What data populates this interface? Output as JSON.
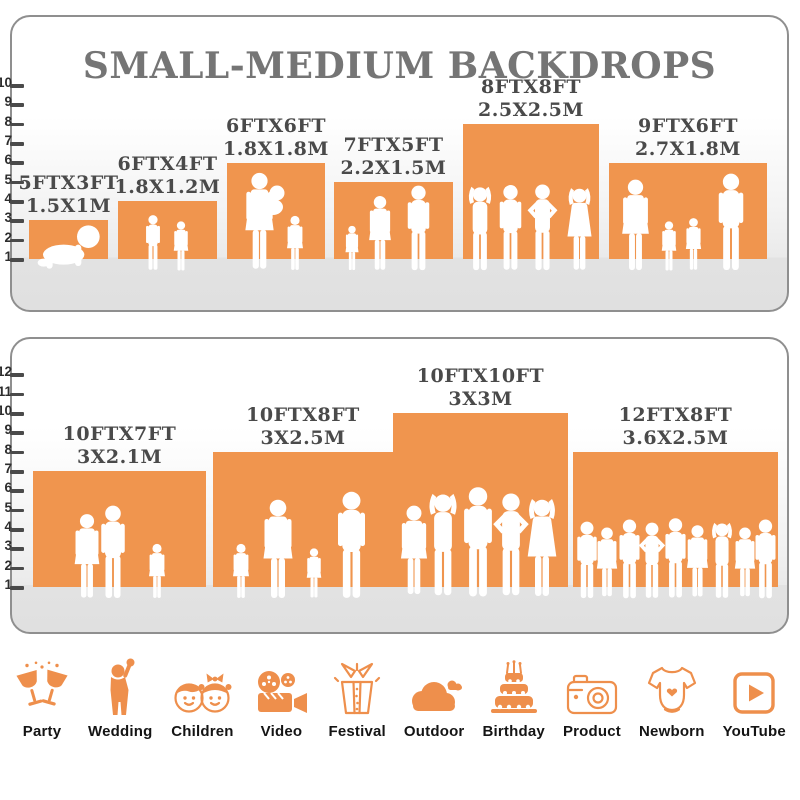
{
  "title": "SMALL-MEDIUM BACKDROPS",
  "colors": {
    "accent_orange": "#F0954E",
    "icon_orange": "#EE8F4C",
    "panel_border": "#8F8F8F",
    "floor_gray": "#E2E2E2",
    "title_text": "#757575",
    "bar_label_text": "#4A4A4A",
    "axis_text": "#2D2D2D",
    "silhouette": "#FFFFFF"
  },
  "chart_data": [
    {
      "type": "bar",
      "panel": "top",
      "title": "SMALL-MEDIUM BACKDROPS",
      "ylim": [
        0,
        10
      ],
      "yticks": [
        1,
        2,
        3,
        4,
        5,
        6,
        7,
        8,
        9,
        10
      ],
      "categories": [
        "5FTX3FT",
        "6FTX4FT",
        "6FTX6FT",
        "7FTX5FT",
        "8FTX8FT",
        "9FTX6FT"
      ],
      "values": [
        3,
        4,
        6,
        5,
        8,
        6
      ],
      "bars": [
        {
          "ft": "5FTX3FT",
          "m": "1.5X1M",
          "height_ft": 3,
          "width_ft": 5,
          "people": "crawling baby"
        },
        {
          "ft": "6FTX4FT",
          "m": "1.8X1.2M",
          "height_ft": 4,
          "width_ft": 6,
          "people": "boy and girl"
        },
        {
          "ft": "6FTX6FT",
          "m": "1.8X1.8M",
          "height_ft": 6,
          "width_ft": 6,
          "people": "mother holding baby with girl"
        },
        {
          "ft": "7FTX5FT",
          "m": "2.2X1.5M",
          "height_ft": 5,
          "width_ft": 7,
          "people": "toddler, woman and man"
        },
        {
          "ft": "8FTX8FT",
          "m": "2.5X2.5M",
          "height_ft": 8,
          "width_ft": 8,
          "people": "four posing adults"
        },
        {
          "ft": "9FTX6FT",
          "m": "2.7X1.8M",
          "height_ft": 6,
          "width_ft": 9,
          "people": "family of four holding hands"
        }
      ]
    },
    {
      "type": "bar",
      "panel": "bottom",
      "title": "",
      "ylim": [
        0,
        12
      ],
      "yticks": [
        1,
        2,
        3,
        4,
        5,
        6,
        7,
        8,
        9,
        10,
        11,
        12
      ],
      "categories": [
        "10FTX7FT",
        "10FTX8FT",
        "10FTX10FT",
        "12FTX8FT"
      ],
      "values": [
        7,
        8,
        10,
        8
      ],
      "bars": [
        {
          "ft": "10FTX7FT",
          "m": "3X2.1M",
          "height_ft": 7,
          "width_ft": 10,
          "people": "couple with girl"
        },
        {
          "ft": "10FTX8FT",
          "m": "3X2.5M",
          "height_ft": 8,
          "width_ft": 10,
          "people": "family of four holding hands"
        },
        {
          "ft": "10FTX10FT",
          "m": "3X3M",
          "height_ft": 10,
          "width_ft": 10,
          "people": "group of five adults"
        },
        {
          "ft": "12FTX8FT",
          "m": "3.6X2.5M",
          "height_ft": 8,
          "width_ft": 12,
          "people": "crowd of nine adults"
        }
      ]
    }
  ],
  "categories": [
    {
      "label": "Party",
      "icon": "party-icon"
    },
    {
      "label": "Wedding",
      "icon": "wedding-icon"
    },
    {
      "label": "Children",
      "icon": "children-icon"
    },
    {
      "label": "Video",
      "icon": "video-icon"
    },
    {
      "label": "Festival",
      "icon": "festival-icon"
    },
    {
      "label": "Outdoor",
      "icon": "outdoor-icon"
    },
    {
      "label": "Birthday",
      "icon": "birthday-icon"
    },
    {
      "label": "Product",
      "icon": "product-icon"
    },
    {
      "label": "Newborn",
      "icon": "newborn-icon"
    },
    {
      "label": "YouTube",
      "icon": "youtube-icon"
    }
  ]
}
